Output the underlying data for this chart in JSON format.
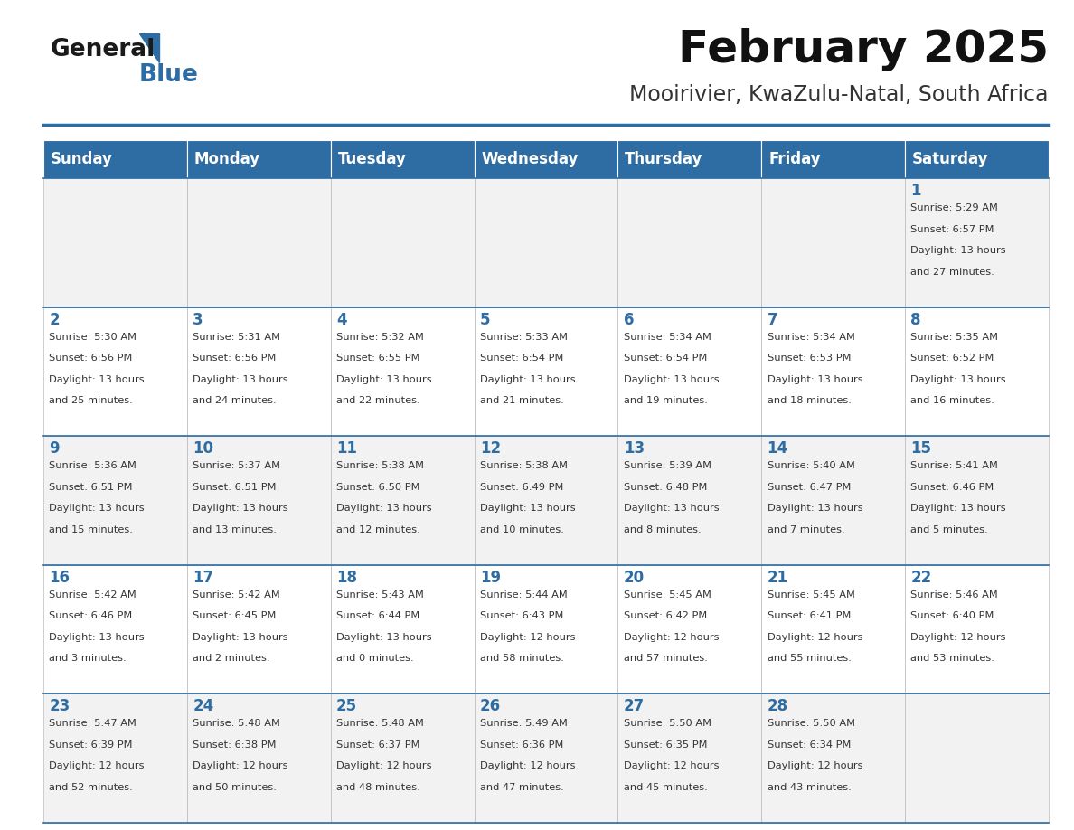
{
  "title": "February 2025",
  "subtitle": "Mooirivier, KwaZulu-Natal, South Africa",
  "days_of_week": [
    "Sunday",
    "Monday",
    "Tuesday",
    "Wednesday",
    "Thursday",
    "Friday",
    "Saturday"
  ],
  "header_bg": "#2E6DA4",
  "header_text": "#FFFFFF",
  "row_bg_odd": "#F2F2F2",
  "row_bg_even": "#FFFFFF",
  "cell_border": "#BBBBBB",
  "day_num_color": "#2E6DA4",
  "info_color": "#333333",
  "title_color": "#111111",
  "subtitle_color": "#333333",
  "sep_line_color": "#2E6DA4",
  "calendar": [
    [
      null,
      null,
      null,
      null,
      null,
      null,
      {
        "day": 1,
        "sunrise": "5:29 AM",
        "sunset": "6:57 PM",
        "daylight": "13 hours and 27 minutes."
      }
    ],
    [
      {
        "day": 2,
        "sunrise": "5:30 AM",
        "sunset": "6:56 PM",
        "daylight": "13 hours and 25 minutes."
      },
      {
        "day": 3,
        "sunrise": "5:31 AM",
        "sunset": "6:56 PM",
        "daylight": "13 hours and 24 minutes."
      },
      {
        "day": 4,
        "sunrise": "5:32 AM",
        "sunset": "6:55 PM",
        "daylight": "13 hours and 22 minutes."
      },
      {
        "day": 5,
        "sunrise": "5:33 AM",
        "sunset": "6:54 PM",
        "daylight": "13 hours and 21 minutes."
      },
      {
        "day": 6,
        "sunrise": "5:34 AM",
        "sunset": "6:54 PM",
        "daylight": "13 hours and 19 minutes."
      },
      {
        "day": 7,
        "sunrise": "5:34 AM",
        "sunset": "6:53 PM",
        "daylight": "13 hours and 18 minutes."
      },
      {
        "day": 8,
        "sunrise": "5:35 AM",
        "sunset": "6:52 PM",
        "daylight": "13 hours and 16 minutes."
      }
    ],
    [
      {
        "day": 9,
        "sunrise": "5:36 AM",
        "sunset": "6:51 PM",
        "daylight": "13 hours and 15 minutes."
      },
      {
        "day": 10,
        "sunrise": "5:37 AM",
        "sunset": "6:51 PM",
        "daylight": "13 hours and 13 minutes."
      },
      {
        "day": 11,
        "sunrise": "5:38 AM",
        "sunset": "6:50 PM",
        "daylight": "13 hours and 12 minutes."
      },
      {
        "day": 12,
        "sunrise": "5:38 AM",
        "sunset": "6:49 PM",
        "daylight": "13 hours and 10 minutes."
      },
      {
        "day": 13,
        "sunrise": "5:39 AM",
        "sunset": "6:48 PM",
        "daylight": "13 hours and 8 minutes."
      },
      {
        "day": 14,
        "sunrise": "5:40 AM",
        "sunset": "6:47 PM",
        "daylight": "13 hours and 7 minutes."
      },
      {
        "day": 15,
        "sunrise": "5:41 AM",
        "sunset": "6:46 PM",
        "daylight": "13 hours and 5 minutes."
      }
    ],
    [
      {
        "day": 16,
        "sunrise": "5:42 AM",
        "sunset": "6:46 PM",
        "daylight": "13 hours and 3 minutes."
      },
      {
        "day": 17,
        "sunrise": "5:42 AM",
        "sunset": "6:45 PM",
        "daylight": "13 hours and 2 minutes."
      },
      {
        "day": 18,
        "sunrise": "5:43 AM",
        "sunset": "6:44 PM",
        "daylight": "13 hours and 0 minutes."
      },
      {
        "day": 19,
        "sunrise": "5:44 AM",
        "sunset": "6:43 PM",
        "daylight": "12 hours and 58 minutes."
      },
      {
        "day": 20,
        "sunrise": "5:45 AM",
        "sunset": "6:42 PM",
        "daylight": "12 hours and 57 minutes."
      },
      {
        "day": 21,
        "sunrise": "5:45 AM",
        "sunset": "6:41 PM",
        "daylight": "12 hours and 55 minutes."
      },
      {
        "day": 22,
        "sunrise": "5:46 AM",
        "sunset": "6:40 PM",
        "daylight": "12 hours and 53 minutes."
      }
    ],
    [
      {
        "day": 23,
        "sunrise": "5:47 AM",
        "sunset": "6:39 PM",
        "daylight": "12 hours and 52 minutes."
      },
      {
        "day": 24,
        "sunrise": "5:48 AM",
        "sunset": "6:38 PM",
        "daylight": "12 hours and 50 minutes."
      },
      {
        "day": 25,
        "sunrise": "5:48 AM",
        "sunset": "6:37 PM",
        "daylight": "12 hours and 48 minutes."
      },
      {
        "day": 26,
        "sunrise": "5:49 AM",
        "sunset": "6:36 PM",
        "daylight": "12 hours and 47 minutes."
      },
      {
        "day": 27,
        "sunrise": "5:50 AM",
        "sunset": "6:35 PM",
        "daylight": "12 hours and 45 minutes."
      },
      {
        "day": 28,
        "sunrise": "5:50 AM",
        "sunset": "6:34 PM",
        "daylight": "12 hours and 43 minutes."
      },
      null
    ]
  ]
}
